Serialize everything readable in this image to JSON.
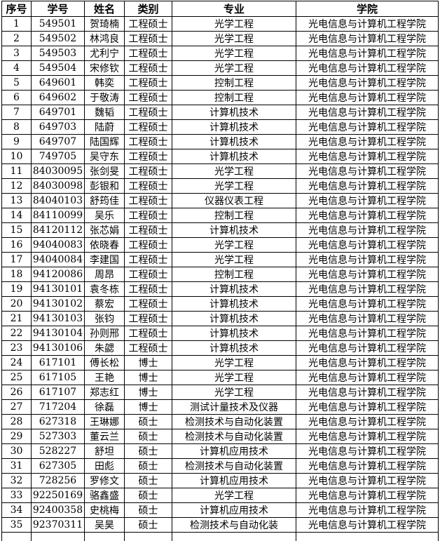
{
  "colors": {
    "background": "#ffffff",
    "border": "#000000",
    "text": "#000000"
  },
  "table": {
    "columns": [
      {
        "key": "index",
        "label": "序号"
      },
      {
        "key": "student-id",
        "label": "学号"
      },
      {
        "key": "name",
        "label": "姓名"
      },
      {
        "key": "category",
        "label": "类别"
      },
      {
        "key": "major",
        "label": "专业"
      },
      {
        "key": "college",
        "label": "学院"
      }
    ],
    "rows": [
      [
        "1",
        "549501",
        "贺琦楠",
        "工程硕士",
        "光学工程",
        "光电信息与计算机工程学院"
      ],
      [
        "2",
        "549502",
        "林鸿良",
        "工程硕士",
        "光学工程",
        "光电信息与计算机工程学院"
      ],
      [
        "3",
        "549503",
        "尤利宁",
        "工程硕士",
        "光学工程",
        "光电信息与计算机工程学院"
      ],
      [
        "4",
        "549504",
        "宋修钦",
        "工程硕士",
        "光学工程",
        "光电信息与计算机工程学院"
      ],
      [
        "5",
        "649601",
        "韩奕",
        "工程硕士",
        "控制工程",
        "光电信息与计算机工程学院"
      ],
      [
        "6",
        "649602",
        "于敬涛",
        "工程硕士",
        "控制工程",
        "光电信息与计算机工程学院"
      ],
      [
        "7",
        "649701",
        "魏韬",
        "工程硕士",
        "计算机技术",
        "光电信息与计算机工程学院"
      ],
      [
        "8",
        "649703",
        "陆蔚",
        "工程硕士",
        "计算机技术",
        "光电信息与计算机工程学院"
      ],
      [
        "9",
        "649707",
        "陆国辉",
        "工程硕士",
        "计算机技术",
        "光电信息与计算机工程学院"
      ],
      [
        "10",
        "749705",
        "吴守东",
        "工程硕士",
        "计算机技术",
        "光电信息与计算机工程学院"
      ],
      [
        "11",
        "84030095",
        "张剑旻",
        "工程硕士",
        "光学工程",
        "光电信息与计算机工程学院"
      ],
      [
        "12",
        "84030098",
        "彭银和",
        "工程硕士",
        "光学工程",
        "光电信息与计算机工程学院"
      ],
      [
        "13",
        "84040103",
        "舒筠佳",
        "工程硕士",
        "仪器仪表工程",
        "光电信息与计算机工程学院"
      ],
      [
        "14",
        "84110099",
        "吴乐",
        "工程硕士",
        "控制工程",
        "光电信息与计算机工程学院"
      ],
      [
        "15",
        "84120112",
        "张芯娟",
        "工程硕士",
        "计算机技术",
        "光电信息与计算机工程学院"
      ],
      [
        "16",
        "94040083",
        "依晓春",
        "工程硕士",
        "光学工程",
        "光电信息与计算机工程学院"
      ],
      [
        "17",
        "94040084",
        "李建国",
        "工程硕士",
        "光学工程",
        "光电信息与计算机工程学院"
      ],
      [
        "18",
        "94120086",
        "周昂",
        "工程硕士",
        "控制工程",
        "光电信息与计算机工程学院"
      ],
      [
        "19",
        "94130101",
        "袁冬栋",
        "工程硕士",
        "计算机技术",
        "光电信息与计算机工程学院"
      ],
      [
        "20",
        "94130102",
        "蔡宏",
        "工程硕士",
        "计算机技术",
        "光电信息与计算机工程学院"
      ],
      [
        "21",
        "94130103",
        "张钧",
        "工程硕士",
        "计算机技术",
        "光电信息与计算机工程学院"
      ],
      [
        "22",
        "94130104",
        "孙则邢",
        "工程硕士",
        "计算机技术",
        "光电信息与计算机工程学院"
      ],
      [
        "23",
        "94130106",
        "朱勰",
        "工程硕士",
        "计算机技术",
        "光电信息与计算机工程学院"
      ],
      [
        "24",
        "617101",
        "傅长松",
        "博士",
        "光学工程",
        "光电信息与计算机工程学院"
      ],
      [
        "25",
        "617105",
        "王艳",
        "博士",
        "光学工程",
        "光电信息与计算机工程学院"
      ],
      [
        "26",
        "617107",
        "郑志红",
        "博士",
        "光学工程",
        "光电信息与计算机工程学院"
      ],
      [
        "27",
        "717204",
        "徐磊",
        "博士",
        "测试计量技术及仪器",
        "光电信息与计算机工程学院"
      ],
      [
        "28",
        "627318",
        "王琳娜",
        "硕士",
        "检测技术与自动化装置",
        "光电信息与计算机工程学院"
      ],
      [
        "29",
        "527303",
        "董云兰",
        "硕士",
        "检测技术与自动化装置",
        "光电信息与计算机工程学院"
      ],
      [
        "30",
        "528227",
        "舒坦",
        "硕士",
        "计算机应用技术",
        "光电信息与计算机工程学院"
      ],
      [
        "31",
        "627305",
        "田彪",
        "硕士",
        "检测技术与自动化装置",
        "光电信息与计算机工程学院"
      ],
      [
        "32",
        "728256",
        "罗修文",
        "硕士",
        "计算机应用技术",
        "光电信息与计算机工程学院"
      ],
      [
        "33",
        "92250169",
        "骆鑫盛",
        "硕士",
        "光学工程",
        "光电信息与计算机工程学院"
      ],
      [
        "34",
        "92400358",
        "史桃梅",
        "硕士",
        "计算机应用技术",
        "光电信息与计算机工程学院"
      ],
      [
        "35",
        "92370311",
        "吴昊",
        "硕士",
        "检测技术与自动化装",
        "光电信息与计算机工程学院"
      ]
    ]
  }
}
